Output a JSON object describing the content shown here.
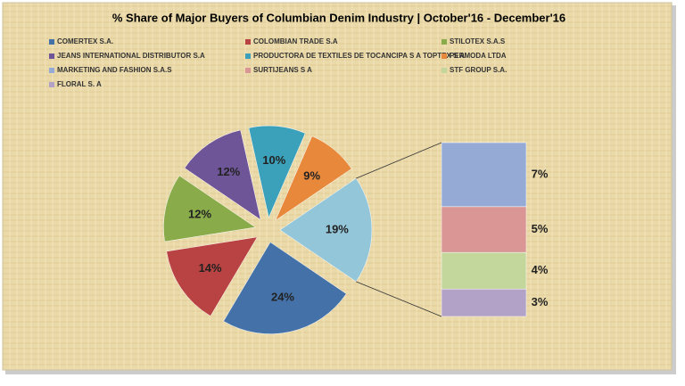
{
  "chart_data": {
    "type": "pie-of-bar",
    "title": "% Share of Major Buyers of Columbian Denim Industry | October'16 - December'16",
    "series": [
      {
        "name": "COMERTEX S.A.",
        "color": "#4472a8",
        "values": [
          24
        ],
        "value_labels": [
          "24%"
        ]
      },
      {
        "name": "COLOMBIAN TRADE S.A",
        "color": "#b94242",
        "values": [
          14
        ],
        "value_labels": [
          "14%"
        ]
      },
      {
        "name": "STILOTEX S.A.S",
        "color": "#8aab4a",
        "values": [
          12
        ],
        "value_labels": [
          "12%"
        ]
      },
      {
        "name": "JEANS INTERNATIONAL DISTRIBUTOR S.A",
        "color": "#6e5598",
        "values": [
          12
        ],
        "value_labels": [
          "12%"
        ]
      },
      {
        "name": "PRODUCTORA DE TEXTILES DE TOCANCIPA S A TOPTEX S A",
        "color": "#3ba0b9",
        "values": [
          10
        ],
        "value_labels": [
          "10%"
        ]
      },
      {
        "name": "PERMODA LTDA",
        "color": "#e8883b",
        "values": [
          9
        ],
        "value_labels": [
          "9%"
        ]
      },
      {
        "name": "MARKETING AND FASHION S.A.S",
        "color": "#95abd6",
        "values": [
          7
        ],
        "value_labels": [
          "7%"
        ]
      },
      {
        "name": "SURTIJEANS S A",
        "color": "#d99694",
        "values": [
          5
        ],
        "value_labels": [
          "5%"
        ]
      },
      {
        "name": "STF GROUP S.A.",
        "color": "#c3d69b",
        "values": [
          4
        ],
        "value_labels": [
          "4%"
        ]
      },
      {
        "name": "FLORAL S. A",
        "color": "#b3a2c7",
        "values": [
          3
        ],
        "value_labels": [
          "3%"
        ]
      }
    ],
    "other_value": 19,
    "other_value_label": "19%",
    "other_color": "#93c6d9"
  }
}
